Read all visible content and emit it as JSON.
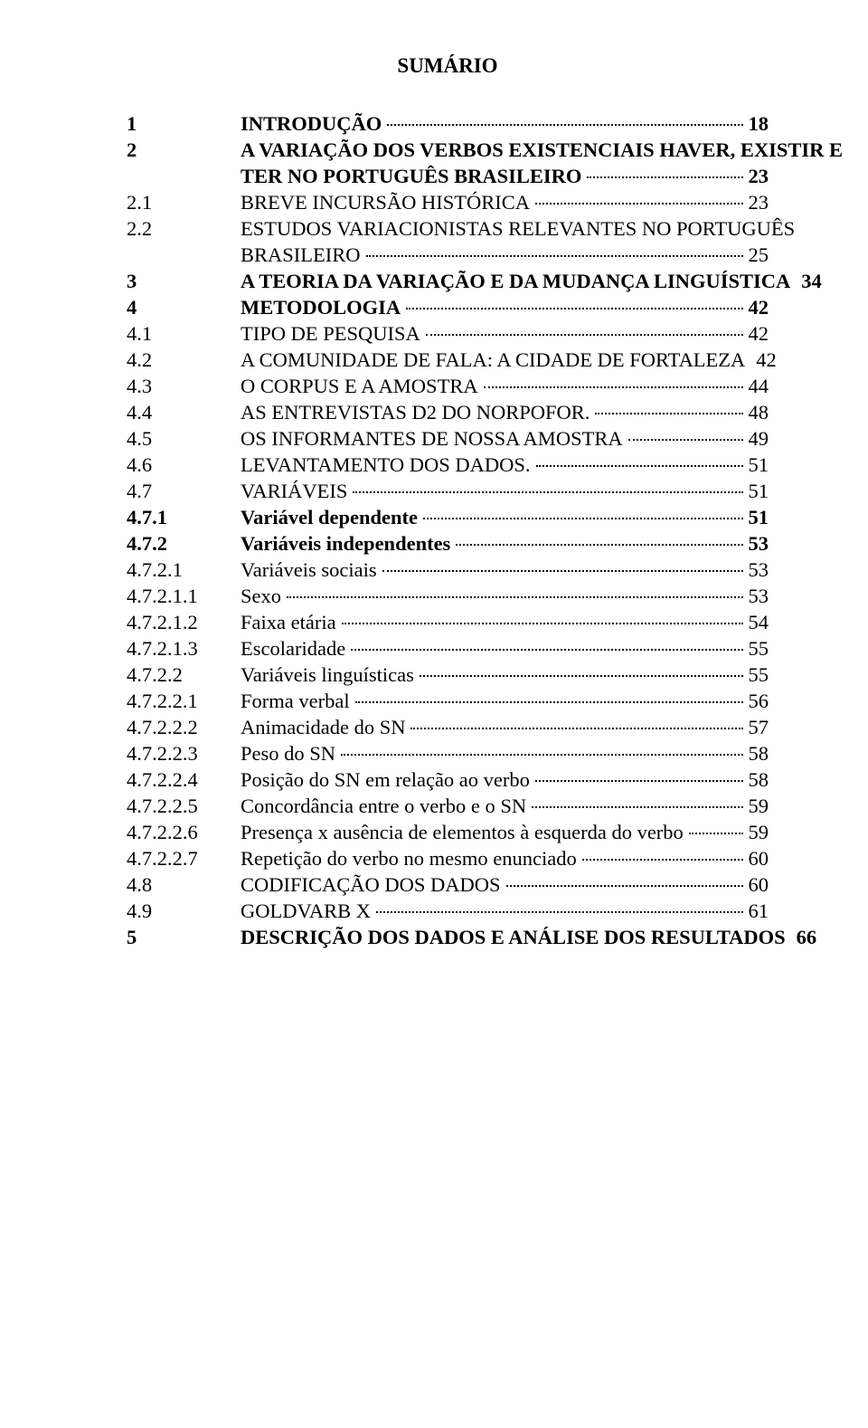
{
  "title": "SUMÁRIO",
  "toc": [
    {
      "num": "1",
      "label": "INTRODUÇÃO",
      "page": "18",
      "bold": true
    },
    {
      "num": "2",
      "label": "A VARIAÇÃO DOS VERBOS EXISTENCIAIS HAVER, EXISTIR E",
      "page": "",
      "bold": true,
      "nodots": true
    },
    {
      "num": "",
      "label": "TER NO PORTUGUÊS BRASILEIRO",
      "page": "23",
      "bold": true,
      "continuation": true
    },
    {
      "num": "2.1",
      "label": "BREVE INCURSÃO HISTÓRICA",
      "page": "23",
      "bold": false
    },
    {
      "num": "2.2",
      "label": "ESTUDOS VARIACIONISTAS RELEVANTES NO PORTUGUÊS",
      "page": "",
      "bold": false,
      "nodots": true
    },
    {
      "num": "",
      "label": "BRASILEIRO",
      "page": "25",
      "bold": false,
      "continuation": true
    },
    {
      "num": "3",
      "label": "A TEORIA DA VARIAÇÃO E DA MUDANÇA LINGUÍSTICA",
      "page": "34",
      "bold": true
    },
    {
      "num": "4",
      "label": "METODOLOGIA",
      "page": "42",
      "bold": true
    },
    {
      "num": "4.1",
      "label": "TIPO DE PESQUISA",
      "page": "42",
      "bold": false
    },
    {
      "num": "4.2",
      "label": "A COMUNIDADE DE FALA: A CIDADE DE FORTALEZA",
      "page": "42",
      "bold": false
    },
    {
      "num": "4.3",
      "label": "O CORPUS E A AMOSTRA",
      "page": "44",
      "bold": false
    },
    {
      "num": "4.4",
      "label": "AS ENTREVISTAS D2 DO NORPOFOR.",
      "page": "48",
      "bold": false
    },
    {
      "num": "4.5",
      "label": "OS INFORMANTES DE NOSSA AMOSTRA",
      "page": "49",
      "bold": false
    },
    {
      "num": "4.6",
      "label": "LEVANTAMENTO DOS DADOS.",
      "page": "51",
      "bold": false
    },
    {
      "num": "4.7",
      "label": "VARIÁVEIS",
      "page": "51",
      "bold": false
    },
    {
      "num": "4.7.1",
      "label": "Variável dependente",
      "page": "51",
      "bold": true
    },
    {
      "num": "4.7.2",
      "label": "Variáveis independentes",
      "page": "53",
      "bold": true
    },
    {
      "num": "4.7.2.1",
      "label": "Variáveis sociais",
      "page": "53",
      "bold": false
    },
    {
      "num": "4.7.2.1.1",
      "label": "Sexo",
      "page": "53",
      "bold": false
    },
    {
      "num": "4.7.2.1.2",
      "label": "Faixa etária",
      "page": "54",
      "bold": false
    },
    {
      "num": "4.7.2.1.3",
      "label": "Escolaridade",
      "page": "55",
      "bold": false
    },
    {
      "num": "4.7.2.2",
      "label": "Variáveis linguísticas",
      "page": "55",
      "bold": false
    },
    {
      "num": "4.7.2.2.1",
      "label": "Forma verbal",
      "page": "56",
      "bold": false
    },
    {
      "num": "4.7.2.2.2",
      "label": "Animacidade do SN",
      "page": "57",
      "bold": false
    },
    {
      "num": "4.7.2.2.3",
      "label": "Peso do SN",
      "page": "58",
      "bold": false
    },
    {
      "num": "4.7.2.2.4",
      "label": "Posição do SN em relação ao verbo",
      "page": "58",
      "bold": false
    },
    {
      "num": "4.7.2.2.5",
      "label": "Concordância entre o verbo e o SN",
      "page": "59",
      "bold": false
    },
    {
      "num": "4.7.2.2.6",
      "label": "Presença x ausência de elementos à esquerda do verbo",
      "page": "59",
      "bold": false
    },
    {
      "num": "4.7.2.2.7",
      "label": "Repetição do verbo no mesmo enunciado",
      "page": "60",
      "bold": false
    },
    {
      "num": "4.8",
      "label": "CODIFICAÇÃO DOS DADOS",
      "page": "60",
      "bold": false
    },
    {
      "num": "4.9",
      "label": "GOLDVARB X",
      "page": "61",
      "bold": false
    },
    {
      "num": "5",
      "label": "DESCRIÇÃO DOS DADOS E ANÁLISE DOS RESULTADOS",
      "page": "66",
      "bold": true
    }
  ]
}
